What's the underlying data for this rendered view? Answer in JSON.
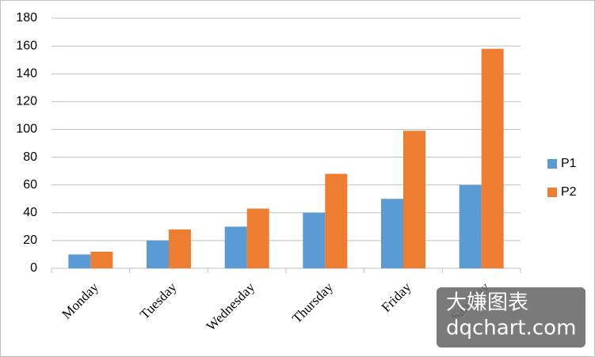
{
  "chart_data": {
    "type": "bar",
    "categories": [
      "Monday",
      "Tuesday",
      "Wednesday",
      "Thursday",
      "Friday",
      "Saturday"
    ],
    "series": [
      {
        "name": "P1",
        "color": "#5b9bd5",
        "values": [
          10,
          20,
          30,
          40,
          50,
          60
        ]
      },
      {
        "name": "P2",
        "color": "#ed7d31",
        "values": [
          12,
          28,
          43,
          68,
          99,
          158
        ]
      }
    ],
    "ylim": [
      0,
      180
    ],
    "yticks": [
      0,
      20,
      40,
      60,
      80,
      100,
      120,
      140,
      160,
      180
    ],
    "grid": true,
    "legend": "right"
  },
  "watermark": {
    "title": "大嫌图表",
    "site": "dqchart.com"
  }
}
